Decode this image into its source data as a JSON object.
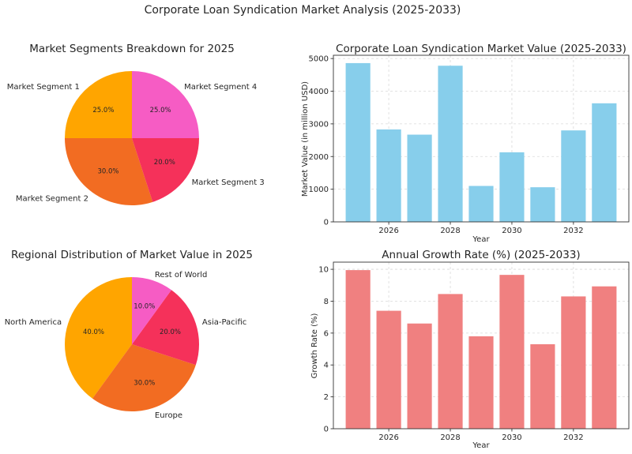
{
  "figure": {
    "suptitle": "Corporate Loan Syndication Market Analysis (2025-2033)"
  },
  "chart_data": [
    {
      "id": "segments",
      "type": "pie",
      "title": "Market Segments Breakdown for 2025",
      "labels": [
        "Market Segment 1",
        "Market Segment 2",
        "Market Segment 3",
        "Market Segment 4"
      ],
      "values": [
        25.0,
        30.0,
        20.0,
        25.0
      ],
      "pct_labels": [
        "25.0%",
        "30.0%",
        "20.0%",
        "25.0%"
      ],
      "colors": [
        "#ffa500",
        "#f26c22",
        "#f5315a",
        "#f65cc4"
      ]
    },
    {
      "id": "regions",
      "type": "pie",
      "title": "Regional Distribution of Market Value in 2025",
      "labels": [
        "North America",
        "Europe",
        "Asia-Pacific",
        "Rest of World"
      ],
      "values": [
        40.0,
        30.0,
        20.0,
        10.0
      ],
      "pct_labels": [
        "40.0%",
        "30.0%",
        "20.0%",
        "10.0%"
      ],
      "colors": [
        "#ffa500",
        "#f26c22",
        "#f5315a",
        "#f65cc4"
      ]
    },
    {
      "id": "market_value",
      "type": "bar",
      "title": "Corporate Loan Syndication Market Value (2025-2033)",
      "xlabel": "Year",
      "ylabel": "Market Value (in million USD)",
      "x": [
        2025,
        2026,
        2027,
        2028,
        2029,
        2030,
        2031,
        2032,
        2033
      ],
      "values": [
        4860,
        2830,
        2670,
        4780,
        1100,
        2130,
        1060,
        2800,
        3630
      ],
      "xticks": [
        2026,
        2028,
        2030,
        2032
      ],
      "xtick_labels": [
        "2026",
        "2028",
        "2030",
        "2032"
      ],
      "yticks": [
        0,
        1000,
        2000,
        3000,
        4000,
        5000
      ],
      "ytick_labels": [
        "0",
        "1000",
        "2000",
        "3000",
        "4000",
        "5000"
      ],
      "ylim": [
        0,
        5100
      ],
      "color": "#87ceeb",
      "grid": true
    },
    {
      "id": "growth_rate",
      "type": "bar",
      "title": "Annual Growth Rate (%) (2025-2033)",
      "xlabel": "Year",
      "ylabel": "Growth Rate (%)",
      "x": [
        2025,
        2026,
        2027,
        2028,
        2029,
        2030,
        2031,
        2032,
        2033
      ],
      "values": [
        9.95,
        7.4,
        6.6,
        8.45,
        5.8,
        9.65,
        5.3,
        8.3,
        8.93
      ],
      "xticks": [
        2026,
        2028,
        2030,
        2032
      ],
      "xtick_labels": [
        "2026",
        "2028",
        "2030",
        "2032"
      ],
      "yticks": [
        0,
        2,
        4,
        6,
        8,
        10
      ],
      "ytick_labels": [
        "0",
        "2",
        "4",
        "6",
        "8",
        "10"
      ],
      "ylim": [
        0,
        10.45
      ],
      "color": "#f08080",
      "grid": true
    }
  ]
}
